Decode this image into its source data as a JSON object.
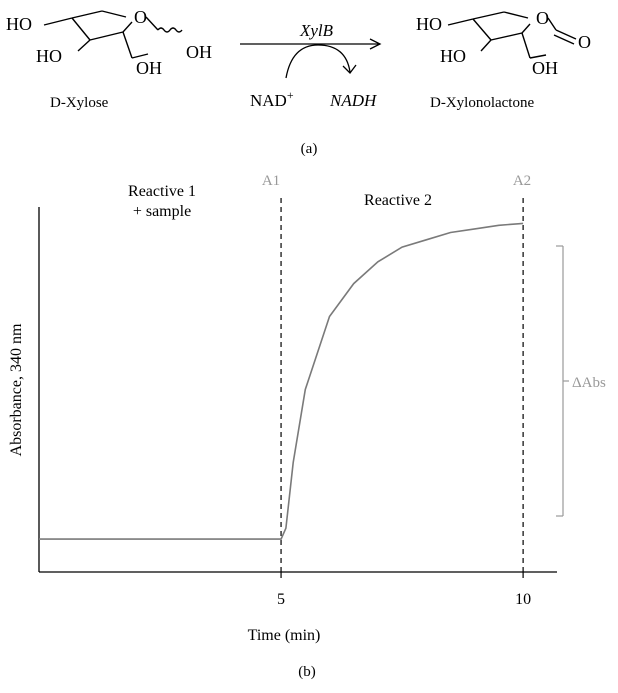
{
  "panel_a": {
    "reactant": {
      "name": "D-Xylose",
      "groups": {
        "ho_top": "HO",
        "ho_left": "HO",
        "ring_o": "O",
        "oh_anomeric": "OH",
        "oh_bottom": "OH"
      }
    },
    "enzyme": "XylB",
    "cofactor_in": "NAD",
    "cofactor_in_sup": "+",
    "cofactor_out": "NADH",
    "product": {
      "name": "D-Xylonolactone",
      "groups": {
        "ho_top": "HO",
        "ho_left": "HO",
        "ring_o": "O",
        "carbonyl_o": "O",
        "oh_bottom": "OH"
      }
    },
    "caption": "(a)"
  },
  "panel_b": {
    "caption": "(b)",
    "phase1_line1": "Reactive 1",
    "phase1_line2": "+ sample",
    "phase2_label": "Reactive 2",
    "marker1_label": "A1",
    "marker2_label": "A2",
    "delta_label": "ΔAbs",
    "colors": {
      "curve": "#7a7a7a",
      "marker": "#999999",
      "axis": "#000000"
    }
  },
  "chart_data": {
    "type": "line",
    "xlabel": "Time (min)",
    "ylabel": "Absorbance, 340 nm",
    "xticks": [
      "5",
      "10"
    ],
    "xtick_values": [
      5,
      10
    ],
    "xlim": [
      0,
      10.7
    ],
    "ylim": [
      0,
      1
    ],
    "y_units": "relative (no y tick labels shown)",
    "series": [
      {
        "x": [
          0,
          5.0,
          5.1,
          5.25,
          5.5,
          6.0,
          6.5,
          7.0,
          7.5,
          8.0,
          8.5,
          9.0,
          9.5,
          10.0
        ],
        "y": [
          0.09,
          0.09,
          0.12,
          0.3,
          0.5,
          0.7,
          0.79,
          0.85,
          0.89,
          0.91,
          0.93,
          0.94,
          0.95,
          0.955
        ]
      }
    ],
    "vlines": [
      5,
      10
    ],
    "grid": false,
    "legend": false
  }
}
